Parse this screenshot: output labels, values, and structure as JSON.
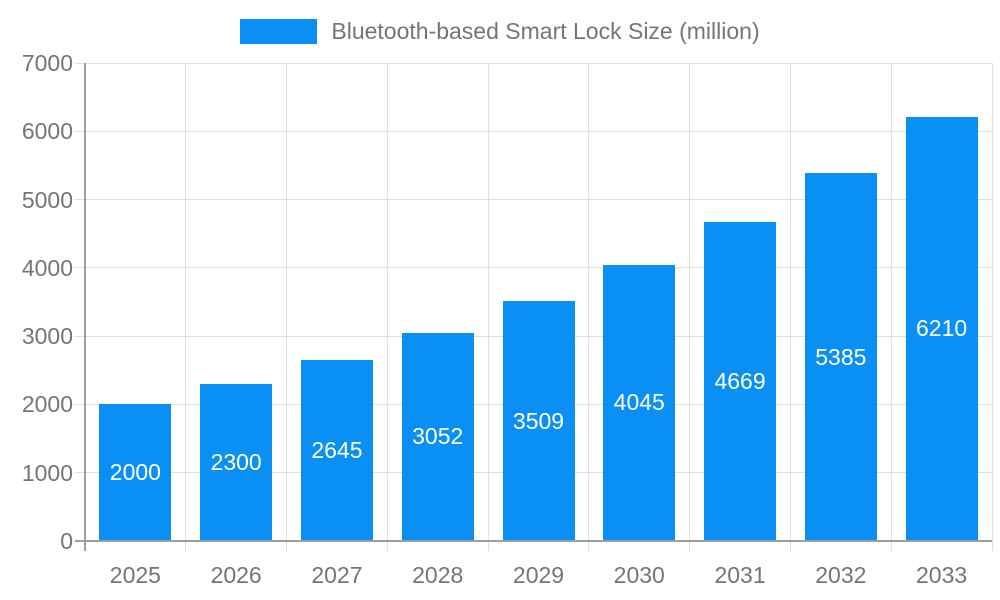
{
  "chart_data": {
    "type": "bar",
    "title": "Bluetooth-based Smart Lock Size (million)",
    "series_name": "Bluetooth-based Smart Lock Size (million)",
    "categories": [
      "2025",
      "2026",
      "2027",
      "2028",
      "2029",
      "2030",
      "2031",
      "2032",
      "2033"
    ],
    "values": [
      2000,
      2300,
      2645,
      3052,
      3509,
      4045,
      4669,
      5385,
      6210
    ],
    "bar_value_labels": [
      "2000",
      "2300",
      "2645",
      "3052",
      "3509",
      "4045",
      "4669",
      "5385",
      "6210"
    ],
    "xlabel": "",
    "ylabel": "",
    "ylim": [
      0,
      7000
    ],
    "yticks": [
      0,
      1000,
      2000,
      3000,
      4000,
      5000,
      6000,
      7000
    ],
    "grid": true,
    "legend_position": "top",
    "value_label_position": "inside-center"
  },
  "style": {
    "bar_color": "#0a90f5",
    "bar_label_color": "#ffffff",
    "axis_text_color": "#757575",
    "grid_color": "#e0e0e0",
    "axis_line_color": "#9e9e9e",
    "background": "#ffffff"
  }
}
